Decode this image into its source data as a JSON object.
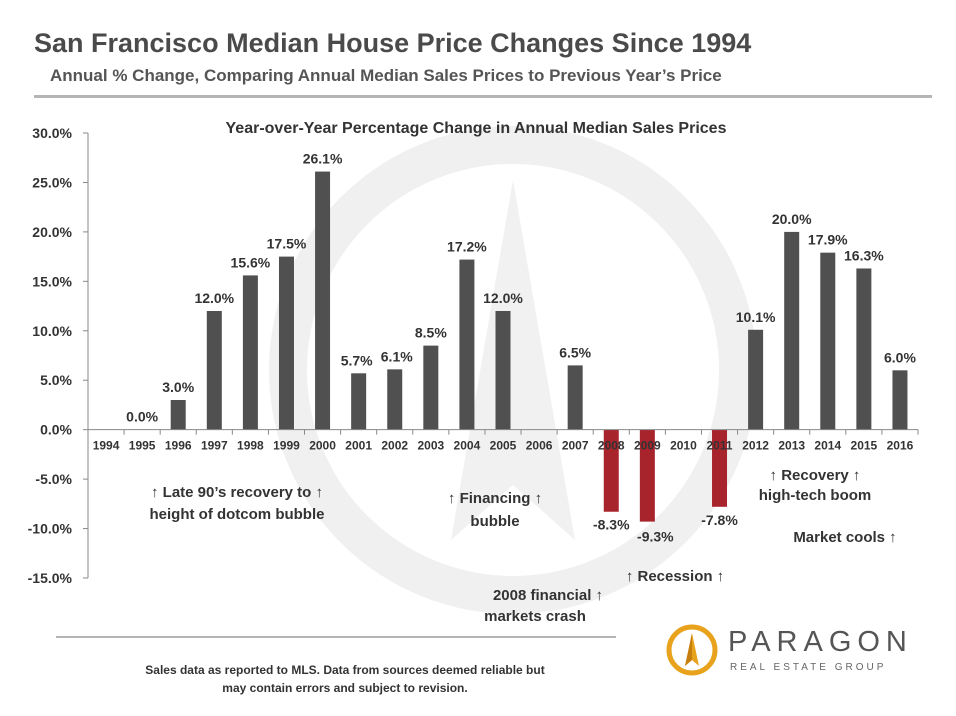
{
  "header": {
    "title": "San Francisco Median House Price Changes Since 1994",
    "subtitle": "Annual % Change, Comparing Annual Median Sales Prices to Previous Year’s Price"
  },
  "chart_data": {
    "type": "bar",
    "title": "Year-over-Year Percentage Change in Annual Median Sales Prices",
    "xlabel": "",
    "ylabel": "",
    "ylim": [
      -15,
      30
    ],
    "y_ticks": [
      "30.0%",
      "25.0%",
      "20.0%",
      "15.0%",
      "10.0%",
      "5.0%",
      "0.0%",
      "-5.0%",
      "-10.0%",
      "-15.0%"
    ],
    "categories": [
      "1994",
      "1995",
      "1996",
      "1997",
      "1998",
      "1999",
      "2000",
      "2001",
      "2002",
      "2003",
      "2004",
      "2005",
      "2006",
      "2007",
      "2008",
      "2009",
      "2010",
      "2011",
      "2012",
      "2013",
      "2014",
      "2015",
      "2016"
    ],
    "values": [
      null,
      0.0,
      3.0,
      12.0,
      15.6,
      17.5,
      26.1,
      5.7,
      6.1,
      8.5,
      17.2,
      12.0,
      null,
      6.5,
      -8.3,
      -9.3,
      null,
      -7.8,
      10.1,
      20.0,
      17.9,
      16.3,
      6.0
    ],
    "data_labels": [
      "",
      "0.0%",
      "3.0%",
      "12.0%",
      "15.6%",
      "17.5%",
      "26.1%",
      "5.7%",
      "6.1%",
      "8.5%",
      "17.2%",
      "12.0%",
      "",
      "6.5%",
      "-8.3%",
      "-9.3%",
      "",
      "-7.8%",
      "10.1%",
      "20.0%",
      "17.9%",
      "16.3%",
      "6.0%"
    ],
    "colors": {
      "positive": "#505050",
      "negative": "#a8242c",
      "axis": "#888888"
    },
    "grid": false,
    "legend": "none",
    "annotations": [
      "↑ Late 90’s recovery to ↑",
      "height of dotcom bubble",
      "↑ Financing ↑",
      "bubble",
      "2008 financial ↑",
      "markets crash",
      "↑ Recession ↑",
      "↑ Recovery ↑",
      "high-tech boom",
      "Market cools ↑"
    ]
  },
  "footer": {
    "note_line1": "Sales data as reported to MLS. Data from sources deemed reliable but",
    "note_line2": "may contain errors and subject to revision.",
    "logo_name": "PARAGON",
    "logo_tagline": "REAL ESTATE GROUP"
  }
}
